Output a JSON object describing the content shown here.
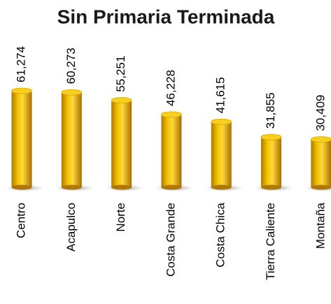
{
  "chart_data": {
    "type": "bar",
    "title": "Sin Primaria Terminada",
    "categories": [
      "Centro",
      "Acapulco",
      "Norte",
      "Costa Grande",
      "Costa Chica",
      "Tierra Caliente",
      "Montaña"
    ],
    "values": [
      61274,
      60273,
      55251,
      46228,
      41615,
      31855,
      30409
    ],
    "value_labels": [
      "61,274",
      "60,273",
      "55,251",
      "46,228",
      "41,615",
      "31,855",
      "30,409"
    ],
    "color": "#e8b400"
  }
}
